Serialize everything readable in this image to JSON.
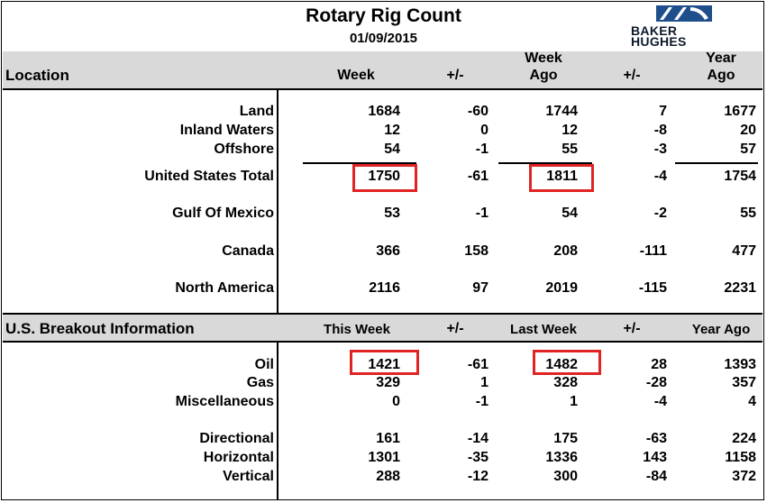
{
  "title": "Rotary Rig Count",
  "date": "01/09/2015",
  "logo": {
    "line1": "BAKER",
    "line2": "HUGHES",
    "accent": "#1f4e8c"
  },
  "header1": {
    "label": "Location",
    "week": "Week",
    "pm1": "+/-",
    "week_ago_1": "Week",
    "week_ago_2": "Ago",
    "pm2": "+/-",
    "year_ago_1": "Year",
    "year_ago_2": "Ago"
  },
  "rows1": [
    {
      "label": "Land",
      "week": "1684",
      "pm1": "-60",
      "week_ago": "1744",
      "pm2": "7",
      "year_ago": "1677"
    },
    {
      "label": "Inland Waters",
      "week": "12",
      "pm1": "0",
      "week_ago": "12",
      "pm2": "-8",
      "year_ago": "20"
    },
    {
      "label": "Offshore",
      "week": "54",
      "pm1": "-1",
      "week_ago": "55",
      "pm2": "-3",
      "year_ago": "57"
    },
    {
      "label": "United States Total",
      "week": "1750",
      "pm1": "-61",
      "week_ago": "1811",
      "pm2": "-4",
      "year_ago": "1754"
    },
    {
      "label": "Gulf Of Mexico",
      "week": "53",
      "pm1": "-1",
      "week_ago": "54",
      "pm2": "-2",
      "year_ago": "55"
    },
    {
      "label": "Canada",
      "week": "366",
      "pm1": "158",
      "week_ago": "208",
      "pm2": "-111",
      "year_ago": "477"
    },
    {
      "label": "North America",
      "week": "2116",
      "pm1": "97",
      "week_ago": "2019",
      "pm2": "-115",
      "year_ago": "2231"
    }
  ],
  "header2": {
    "label": "U.S. Breakout Information",
    "this_week": "This Week",
    "pm1": "+/-",
    "last_week": "Last Week",
    "pm2": "+/-",
    "year_ago": "Year Ago"
  },
  "rows2": [
    {
      "label": "Oil",
      "week": "1421",
      "pm1": "-61",
      "week_ago": "1482",
      "pm2": "28",
      "year_ago": "1393"
    },
    {
      "label": "Gas",
      "week": "329",
      "pm1": "1",
      "week_ago": "328",
      "pm2": "-28",
      "year_ago": "357"
    },
    {
      "label": "Miscellaneous",
      "week": "0",
      "pm1": "-1",
      "week_ago": "1",
      "pm2": "-4",
      "year_ago": "4"
    },
    {
      "label": "Directional",
      "week": "161",
      "pm1": "-14",
      "week_ago": "175",
      "pm2": "-63",
      "year_ago": "224"
    },
    {
      "label": "Horizontal",
      "week": "1301",
      "pm1": "-35",
      "week_ago": "1336",
      "pm2": "143",
      "year_ago": "1158"
    },
    {
      "label": "Vertical",
      "week": "288",
      "pm1": "-12",
      "week_ago": "300",
      "pm2": "-84",
      "year_ago": "372"
    }
  ],
  "highlight_color": "#e02424"
}
